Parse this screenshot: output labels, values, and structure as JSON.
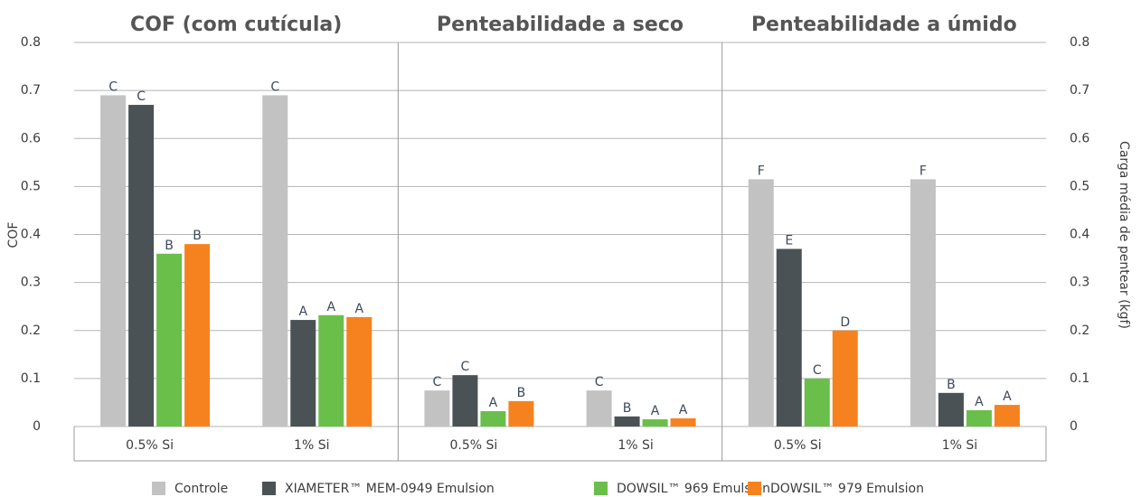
{
  "chart_data": {
    "type": "bar",
    "titles": [
      "COF (com cutícula)",
      "Penteabilidade a seco",
      "Penteabilidade a úmido"
    ],
    "categories": [
      "0.5% Si",
      "1% Si",
      "0.5% Si",
      "1% Si",
      "0.5% Si",
      "1% Si"
    ],
    "series": [
      {
        "name": "Controle",
        "color": "#c2c2c2",
        "values": [
          0.69,
          0.69,
          0.075,
          0.075,
          0.515,
          0.515
        ],
        "letters": [
          "C",
          "C",
          "C",
          "C",
          "F",
          "F"
        ]
      },
      {
        "name": "XIAMETER™ MEM-0949 Emulsion",
        "color": "#4b5255",
        "values": [
          0.67,
          0.222,
          0.107,
          0.021,
          0.37,
          0.07
        ],
        "letters": [
          "C",
          "A",
          "C",
          "B",
          "E",
          "B"
        ]
      },
      {
        "name": "DOWSIL™ 969 Emulsion",
        "color": "#6abf4b",
        "values": [
          0.36,
          0.232,
          0.032,
          0.015,
          0.1,
          0.034
        ],
        "letters": [
          "B",
          "A",
          "A",
          "A",
          "C",
          "A"
        ]
      },
      {
        "name": "DOWSIL™ 979 Emulsion",
        "color": "#f5821f",
        "values": [
          0.38,
          0.228,
          0.053,
          0.017,
          0.2,
          0.045
        ],
        "letters": [
          "B",
          "A",
          "B",
          "A",
          "D",
          "A"
        ]
      }
    ],
    "ylabel": "COF",
    "y2label": "Carga média de pentear  (kgf)",
    "ylim": [
      0,
      0.8
    ],
    "yticks": [
      0,
      0.1,
      0.2,
      0.3,
      0.4,
      0.5,
      0.6,
      0.7,
      0.8
    ],
    "y2lim": [
      0,
      0.8
    ],
    "y2ticks": [
      0,
      0.1,
      0.2,
      0.3,
      0.4,
      0.5,
      0.6,
      0.7,
      0.8
    ],
    "grid": true
  }
}
